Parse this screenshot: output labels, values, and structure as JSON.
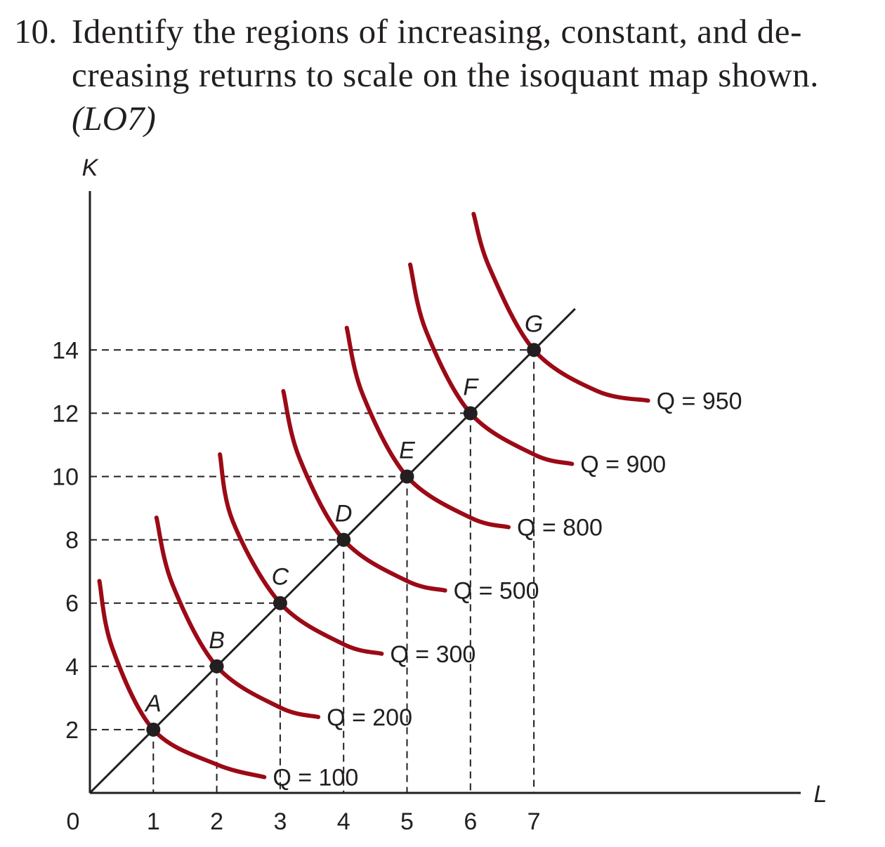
{
  "question": {
    "number": "10.",
    "text": "Identify the regions of increasing, constant, and de-creasing returns to scale on the isoquant map shown.",
    "line1": "Identify the regions of increasing, constant, and de-",
    "line2": "creasing returns to scale on the isoquant map shown.",
    "learning_objective": "(LO7)"
  },
  "colors": {
    "isoquant": "#9b0a16",
    "axis": "#231f20",
    "point": "#231f20"
  },
  "chart_data": {
    "type": "line",
    "xlabel": "L",
    "ylabel": "K",
    "origin_label": "0",
    "xlim": [
      0,
      11.5
    ],
    "ylim": [
      0,
      18.3
    ],
    "x_ticks": [
      "1",
      "2",
      "3",
      "4",
      "5",
      "6",
      "7"
    ],
    "y_ticks": [
      "2",
      "4",
      "6",
      "8",
      "10",
      "12",
      "14"
    ],
    "grid": false,
    "expansion_path": {
      "from": [
        0,
        0
      ],
      "to": [
        7.65,
        15.3
      ]
    },
    "points": [
      {
        "label": "A",
        "x": 1,
        "y": 2
      },
      {
        "label": "B",
        "x": 2,
        "y": 4
      },
      {
        "label": "C",
        "x": 3,
        "y": 6
      },
      {
        "label": "D",
        "x": 4,
        "y": 8
      },
      {
        "label": "E",
        "x": 5,
        "y": 10
      },
      {
        "label": "F",
        "x": 6,
        "y": 12
      },
      {
        "label": "G",
        "x": 7,
        "y": 14
      }
    ],
    "series": [
      {
        "name": "Q = 100",
        "point": "A",
        "points": [
          [
            0.15,
            6.7
          ],
          [
            0.35,
            4.6
          ],
          [
            1,
            2
          ],
          [
            2,
            0.9
          ],
          [
            2.75,
            0.5
          ]
        ]
      },
      {
        "name": "Q = 200",
        "point": "B",
        "points": [
          [
            1.05,
            8.7
          ],
          [
            1.3,
            6.6
          ],
          [
            2,
            4
          ],
          [
            3,
            2.7
          ],
          [
            3.6,
            2.4
          ]
        ]
      },
      {
        "name": "Q = 300",
        "point": "C",
        "points": [
          [
            2.05,
            10.7
          ],
          [
            2.25,
            8.6
          ],
          [
            3,
            6
          ],
          [
            4,
            4.7
          ],
          [
            4.6,
            4.4
          ]
        ]
      },
      {
        "name": "Q = 500",
        "point": "D",
        "points": [
          [
            3.05,
            12.7
          ],
          [
            3.3,
            10.6
          ],
          [
            4,
            8
          ],
          [
            5,
            6.7
          ],
          [
            5.6,
            6.4
          ]
        ]
      },
      {
        "name": "Q = 800",
        "point": "E",
        "points": [
          [
            4.05,
            14.7
          ],
          [
            4.3,
            12.6
          ],
          [
            5,
            10
          ],
          [
            6,
            8.7
          ],
          [
            6.6,
            8.4
          ]
        ]
      },
      {
        "name": "Q = 900",
        "point": "F",
        "points": [
          [
            5.05,
            16.7
          ],
          [
            5.3,
            14.6
          ],
          [
            6,
            12
          ],
          [
            7,
            10.7
          ],
          [
            7.6,
            10.4
          ]
        ]
      },
      {
        "name": "Q = 950",
        "point": "G",
        "points": [
          [
            6.05,
            18.3
          ],
          [
            6.3,
            16.6
          ],
          [
            7,
            14
          ],
          [
            8,
            12.7
          ],
          [
            8.8,
            12.4
          ]
        ]
      }
    ]
  }
}
